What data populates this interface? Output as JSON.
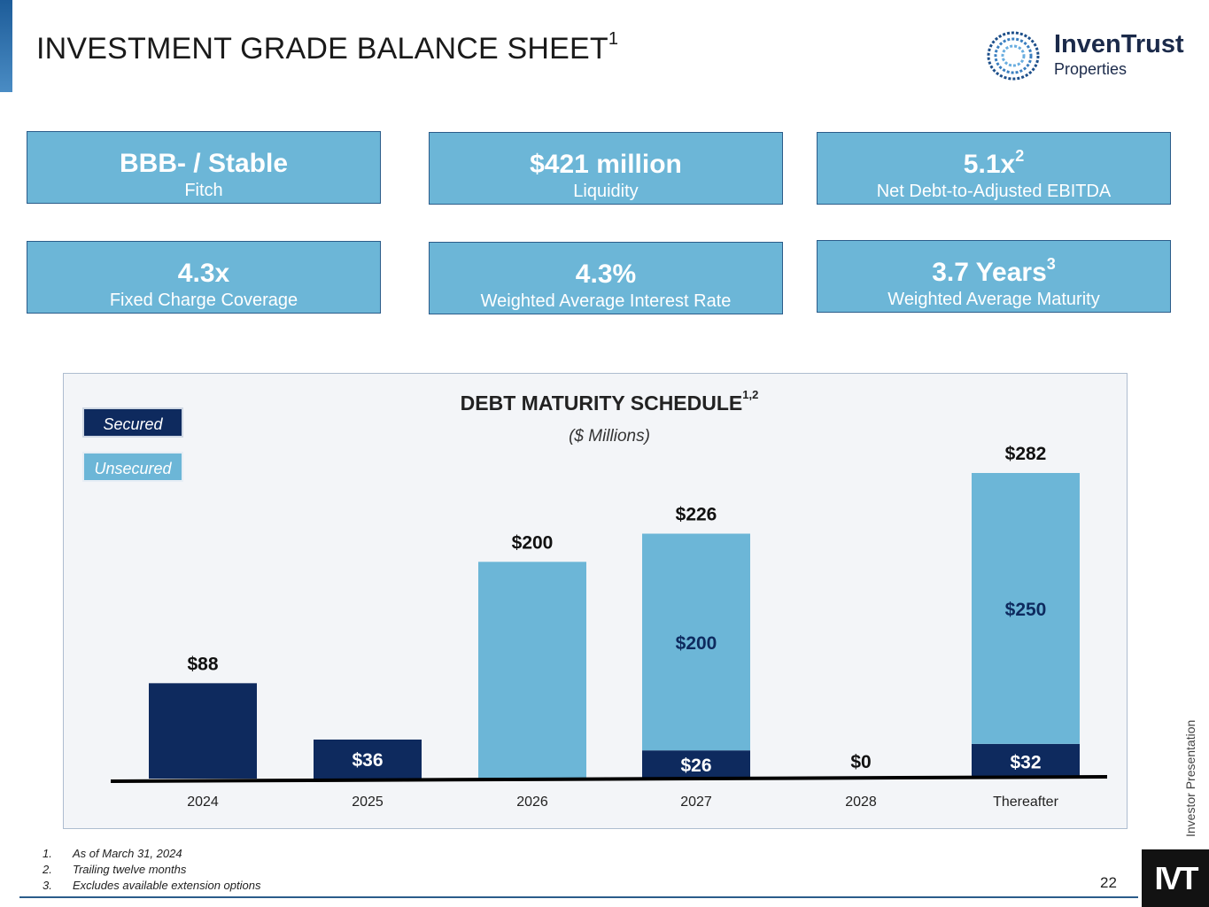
{
  "page": {
    "title": "INVESTMENT GRADE BALANCE SHEET",
    "title_superscript": "1",
    "page_number": "22",
    "side_label": "Investor Presentation",
    "corner_mark": "IVT"
  },
  "logo": {
    "name": "InvenTrust",
    "sub": "Properties"
  },
  "kpis": [
    {
      "value": "BBB- / Stable",
      "sup": "",
      "label": "Fitch"
    },
    {
      "value": "$421 million",
      "sup": "",
      "label": "Liquidity"
    },
    {
      "value": "5.1x",
      "sup": "2",
      "label": "Net Debt-to-Adjusted EBITDA"
    },
    {
      "value": "4.3x",
      "sup": "",
      "label": "Fixed Charge Coverage"
    },
    {
      "value": "4.3%",
      "sup": "",
      "label": "Weighted Average Interest Rate"
    },
    {
      "value": "3.7 Years",
      "sup": "3",
      "label": "Weighted Average Maturity"
    }
  ],
  "legend": {
    "secured": "Secured",
    "unsecured": "Unsecured"
  },
  "chart_data": {
    "type": "bar",
    "stacked": true,
    "title": "DEBT MATURITY SCHEDULE",
    "title_superscript": "1,2",
    "subtitle": "($ Millions)",
    "categories": [
      "2024",
      "2025",
      "2026",
      "2027",
      "2028",
      "Thereafter"
    ],
    "series": [
      {
        "name": "Secured",
        "color": "#0e2a5e",
        "values": [
          88,
          36,
          0,
          26,
          0,
          32
        ]
      },
      {
        "name": "Unsecured",
        "color": "#6cb6d7",
        "values": [
          0,
          0,
          200,
          200,
          0,
          250
        ]
      }
    ],
    "segment_labels": [
      [
        "",
        "$36",
        "",
        "$26",
        "",
        "$32"
      ],
      [
        "",
        "",
        "",
        "$200",
        "",
        "$250"
      ]
    ],
    "total_labels": [
      "$88",
      "",
      "$200",
      "$226",
      "$0",
      "$282"
    ],
    "ylim": [
      0,
      300
    ]
  },
  "footnotes": [
    {
      "num": "1.",
      "text": "As of March 31, 2024"
    },
    {
      "num": "2.",
      "text": "Trailing twelve months"
    },
    {
      "num": "3.",
      "text": "Excludes available extension options"
    }
  ]
}
